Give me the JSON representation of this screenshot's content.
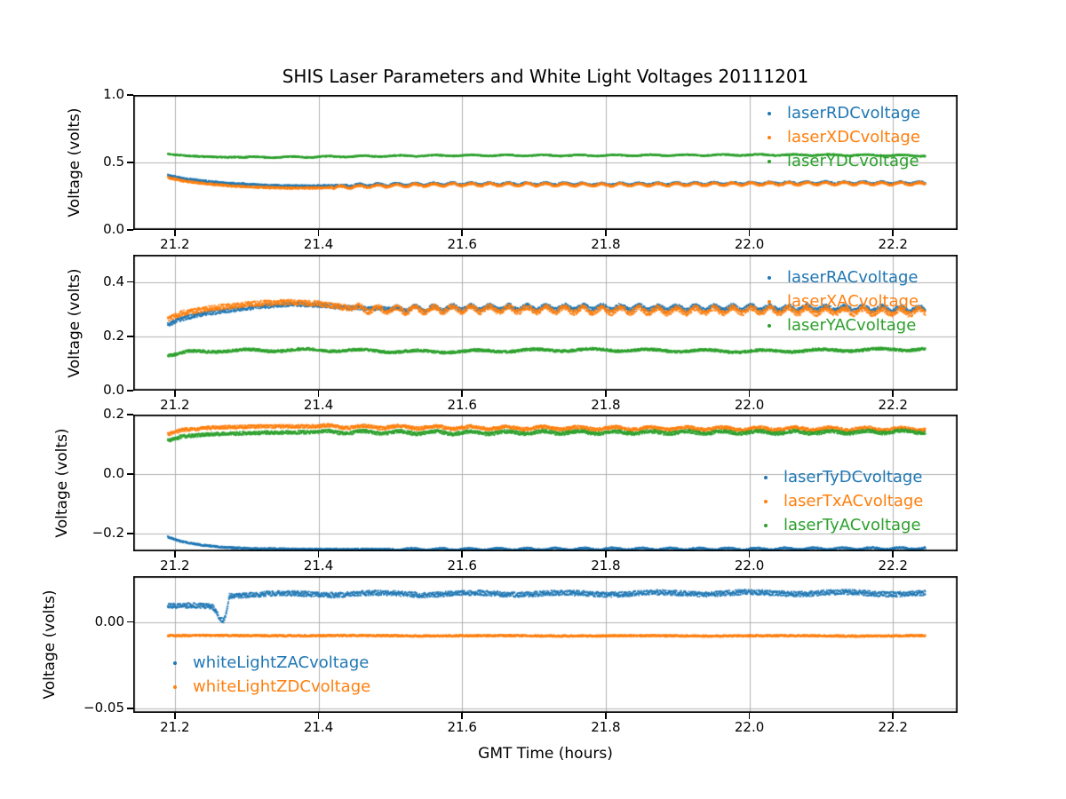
{
  "figure": {
    "title": "SHIS Laser Parameters and White Light Voltages 20111201",
    "xlabel": "GMT Time (hours)",
    "background_color": "#ffffff",
    "grid_color": "#b0b0b0",
    "spine_color": "#000000",
    "text_color": "#000000"
  },
  "chart_data": [
    {
      "type": "scatter",
      "ylabel": "Voltage (volts)",
      "xlim": [
        21.142,
        22.29
      ],
      "ylim": [
        0.0,
        1.0
      ],
      "x_data_range": [
        21.19,
        22.245
      ],
      "xticks": [
        21.2,
        21.4,
        21.6,
        21.8,
        22.0,
        22.2
      ],
      "xtick_labels": [
        "21.2",
        "21.4",
        "21.6",
        "21.8",
        "22.0",
        "22.2"
      ],
      "yticks": [
        0.0,
        0.5,
        1.0
      ],
      "ytick_labels": [
        "0.0",
        "0.5",
        "1.0"
      ],
      "legend_position": "upper-right",
      "grid": true,
      "series": [
        {
          "name": "laserRDCvoltage",
          "color": "#1f77b4",
          "noise": 0.008,
          "ripple": {
            "amp": 0.007,
            "period": 0.026,
            "start": 21.44
          },
          "points": [
            [
              21.19,
              0.405
            ],
            [
              21.215,
              0.378
            ],
            [
              21.24,
              0.362
            ],
            [
              21.27,
              0.348
            ],
            [
              21.3,
              0.338
            ],
            [
              21.33,
              0.33
            ],
            [
              21.36,
              0.326
            ],
            [
              21.4,
              0.326
            ],
            [
              21.44,
              0.33
            ],
            [
              21.5,
              0.336
            ],
            [
              21.6,
              0.342
            ],
            [
              21.7,
              0.342
            ],
            [
              21.8,
              0.34
            ],
            [
              21.9,
              0.342
            ],
            [
              22.0,
              0.346
            ],
            [
              22.1,
              0.35
            ],
            [
              22.245,
              0.348
            ]
          ]
        },
        {
          "name": "laserXDCvoltage",
          "color": "#ff7f0e",
          "noise": 0.008,
          "ripple": {
            "amp": 0.009,
            "period": 0.026,
            "start": 21.42
          },
          "points": [
            [
              21.19,
              0.388
            ],
            [
              21.215,
              0.36
            ],
            [
              21.24,
              0.344
            ],
            [
              21.27,
              0.33
            ],
            [
              21.3,
              0.32
            ],
            [
              21.33,
              0.314
            ],
            [
              21.36,
              0.31
            ],
            [
              21.4,
              0.312
            ],
            [
              21.44,
              0.318
            ],
            [
              21.5,
              0.328
            ],
            [
              21.6,
              0.336
            ],
            [
              21.7,
              0.336
            ],
            [
              21.8,
              0.334
            ],
            [
              21.9,
              0.336
            ],
            [
              22.0,
              0.34
            ],
            [
              22.1,
              0.344
            ],
            [
              22.245,
              0.342
            ]
          ]
        },
        {
          "name": "laserYDCvoltage",
          "color": "#2ca02c",
          "noise": 0.005,
          "ripple": {
            "amp": 0.004,
            "period": 0.05,
            "start": 21.3
          },
          "points": [
            [
              21.19,
              0.562
            ],
            [
              21.22,
              0.548
            ],
            [
              21.26,
              0.54
            ],
            [
              21.32,
              0.538
            ],
            [
              21.4,
              0.542
            ],
            [
              21.5,
              0.548
            ],
            [
              21.6,
              0.552
            ],
            [
              21.8,
              0.552
            ],
            [
              22.0,
              0.556
            ],
            [
              22.1,
              0.556
            ],
            [
              22.245,
              0.55
            ]
          ]
        }
      ]
    },
    {
      "type": "scatter",
      "ylabel": "Voltage (volts)",
      "xlim": [
        21.142,
        22.29
      ],
      "ylim": [
        0.0,
        0.5
      ],
      "x_data_range": [
        21.19,
        22.245
      ],
      "xticks": [
        21.2,
        21.4,
        21.6,
        21.8,
        22.0,
        22.2
      ],
      "xtick_labels": [
        "21.2",
        "21.4",
        "21.6",
        "21.8",
        "22.0",
        "22.2"
      ],
      "yticks": [
        0.0,
        0.2,
        0.4
      ],
      "ytick_labels": [
        "0.0",
        "0.2",
        "0.4"
      ],
      "legend_position": "upper-right",
      "grid": true,
      "series": [
        {
          "name": "laserRACvoltage",
          "color": "#1f77b4",
          "noise": 0.008,
          "ripple": {
            "amp": 0.008,
            "period": 0.026,
            "start": 21.5
          },
          "points": [
            [
              21.19,
              0.243
            ],
            [
              21.21,
              0.265
            ],
            [
              21.24,
              0.283
            ],
            [
              21.28,
              0.298
            ],
            [
              21.32,
              0.31
            ],
            [
              21.36,
              0.318
            ],
            [
              21.4,
              0.315
            ],
            [
              21.44,
              0.306
            ],
            [
              21.5,
              0.3
            ],
            [
              21.6,
              0.305
            ],
            [
              21.7,
              0.306
            ],
            [
              21.8,
              0.306
            ],
            [
              21.9,
              0.304
            ],
            [
              22.0,
              0.305
            ],
            [
              22.1,
              0.304
            ],
            [
              22.245,
              0.3
            ]
          ]
        },
        {
          "name": "laserXACvoltage",
          "color": "#ff7f0e",
          "noise": 0.01,
          "ripple": {
            "amp": 0.01,
            "period": 0.026,
            "start": 21.45
          },
          "points": [
            [
              21.19,
              0.262
            ],
            [
              21.21,
              0.285
            ],
            [
              21.24,
              0.3
            ],
            [
              21.28,
              0.312
            ],
            [
              21.32,
              0.322
            ],
            [
              21.36,
              0.326
            ],
            [
              21.4,
              0.32
            ],
            [
              21.44,
              0.305
            ],
            [
              21.5,
              0.296
            ],
            [
              21.6,
              0.3
            ],
            [
              21.7,
              0.298
            ],
            [
              21.8,
              0.296
            ],
            [
              21.9,
              0.294
            ],
            [
              22.0,
              0.296
            ],
            [
              22.1,
              0.293
            ],
            [
              22.245,
              0.29
            ]
          ]
        },
        {
          "name": "laserYACvoltage",
          "color": "#2ca02c",
          "noise": 0.005,
          "ripple": {
            "amp": 0.004,
            "period": 0.08,
            "start": 21.2
          },
          "points": [
            [
              21.19,
              0.128
            ],
            [
              21.22,
              0.142
            ],
            [
              21.26,
              0.147
            ],
            [
              21.32,
              0.148
            ],
            [
              21.4,
              0.15
            ],
            [
              21.48,
              0.146
            ],
            [
              21.56,
              0.143
            ],
            [
              21.64,
              0.146
            ],
            [
              21.72,
              0.149
            ],
            [
              21.8,
              0.15
            ],
            [
              21.9,
              0.147
            ],
            [
              22.0,
              0.145
            ],
            [
              22.1,
              0.148
            ],
            [
              22.245,
              0.153
            ]
          ]
        }
      ]
    },
    {
      "type": "scatter",
      "ylabel": "Voltage (volts)",
      "xlim": [
        21.142,
        22.29
      ],
      "ylim": [
        -0.26,
        0.2
      ],
      "x_data_range": [
        21.19,
        22.245
      ],
      "xticks": [
        21.2,
        21.4,
        21.6,
        21.8,
        22.0,
        22.2
      ],
      "xtick_labels": [
        "21.2",
        "21.4",
        "21.6",
        "21.8",
        "22.0",
        "22.2"
      ],
      "yticks": [
        -0.2,
        0.0,
        0.2
      ],
      "ytick_labels": [
        "−0.2",
        "0.0",
        "0.2"
      ],
      "legend_position": "middle-right",
      "grid": true,
      "series": [
        {
          "name": "laserTyDCvoltage",
          "color": "#1f77b4",
          "noise": 0.003,
          "ripple": {
            "amp": 0.003,
            "period": 0.04,
            "start": 21.5
          },
          "points": [
            [
              21.19,
              -0.212
            ],
            [
              21.21,
              -0.228
            ],
            [
              21.24,
              -0.24
            ],
            [
              21.27,
              -0.247
            ],
            [
              21.31,
              -0.251
            ],
            [
              21.4,
              -0.253
            ],
            [
              21.6,
              -0.253
            ],
            [
              21.8,
              -0.252
            ],
            [
              22.0,
              -0.252
            ],
            [
              22.245,
              -0.25
            ]
          ]
        },
        {
          "name": "laserTxACvoltage",
          "color": "#ff7f0e",
          "noise": 0.006,
          "ripple": {
            "amp": 0.004,
            "period": 0.05,
            "start": 21.4
          },
          "points": [
            [
              21.19,
              0.134
            ],
            [
              21.21,
              0.148
            ],
            [
              21.25,
              0.156
            ],
            [
              21.32,
              0.16
            ],
            [
              21.4,
              0.16
            ],
            [
              21.5,
              0.158
            ],
            [
              21.6,
              0.156
            ],
            [
              21.75,
              0.154
            ],
            [
              21.9,
              0.153
            ],
            [
              22.1,
              0.152
            ],
            [
              22.245,
              0.151
            ]
          ]
        },
        {
          "name": "laserTyACvoltage",
          "color": "#2ca02c",
          "noise": 0.006,
          "ripple": {
            "amp": 0.004,
            "period": 0.05,
            "start": 21.4
          },
          "points": [
            [
              21.19,
              0.112
            ],
            [
              21.21,
              0.126
            ],
            [
              21.25,
              0.134
            ],
            [
              21.32,
              0.139
            ],
            [
              21.4,
              0.141
            ],
            [
              21.5,
              0.14
            ],
            [
              21.6,
              0.139
            ],
            [
              21.75,
              0.14
            ],
            [
              21.9,
              0.14
            ],
            [
              22.1,
              0.14
            ],
            [
              22.245,
              0.143
            ]
          ]
        }
      ]
    },
    {
      "type": "scatter",
      "ylabel": "Voltage (volts)",
      "xlim": [
        21.142,
        22.29
      ],
      "ylim": [
        -0.0525,
        0.0265
      ],
      "x_data_range": [
        21.19,
        22.245
      ],
      "xticks": [
        21.2,
        21.4,
        21.6,
        21.8,
        22.0,
        22.2
      ],
      "xtick_labels": [
        "21.2",
        "21.4",
        "21.6",
        "21.8",
        "22.0",
        "22.2"
      ],
      "yticks": [
        -0.05,
        0.0
      ],
      "ytick_labels": [
        "−0.05",
        "0.00"
      ],
      "legend_position": "lower-left",
      "grid": true,
      "series": [
        {
          "name": "whiteLightZACvoltage",
          "color": "#1f77b4",
          "noise": 0.0015,
          "ripple": {
            "amp": 0.0006,
            "period": 0.13,
            "start": 21.28
          },
          "points": [
            [
              21.19,
              0.0095
            ],
            [
              21.23,
              0.0095
            ],
            [
              21.252,
              0.009
            ],
            [
              21.258,
              0.006
            ],
            [
              21.263,
              0.0015
            ],
            [
              21.268,
              0.001
            ],
            [
              21.272,
              0.006
            ],
            [
              21.276,
              0.015
            ],
            [
              21.285,
              0.0158
            ],
            [
              21.32,
              0.016
            ],
            [
              21.4,
              0.0162
            ],
            [
              21.5,
              0.0163
            ],
            [
              21.6,
              0.0163
            ],
            [
              21.7,
              0.0164
            ],
            [
              21.8,
              0.0164
            ],
            [
              21.9,
              0.0166
            ],
            [
              22.0,
              0.0167
            ],
            [
              22.1,
              0.0168
            ],
            [
              22.245,
              0.0165
            ]
          ]
        },
        {
          "name": "whiteLightZDCvoltage",
          "color": "#ff7f0e",
          "noise": 0.0006,
          "ripple": {
            "amp": 0.0001,
            "period": 0.2,
            "start": 21.19
          },
          "points": [
            [
              21.19,
              -0.0078
            ],
            [
              21.5,
              -0.0079
            ],
            [
              21.8,
              -0.008
            ],
            [
              22.0,
              -0.008
            ],
            [
              22.245,
              -0.008
            ]
          ]
        }
      ]
    }
  ]
}
